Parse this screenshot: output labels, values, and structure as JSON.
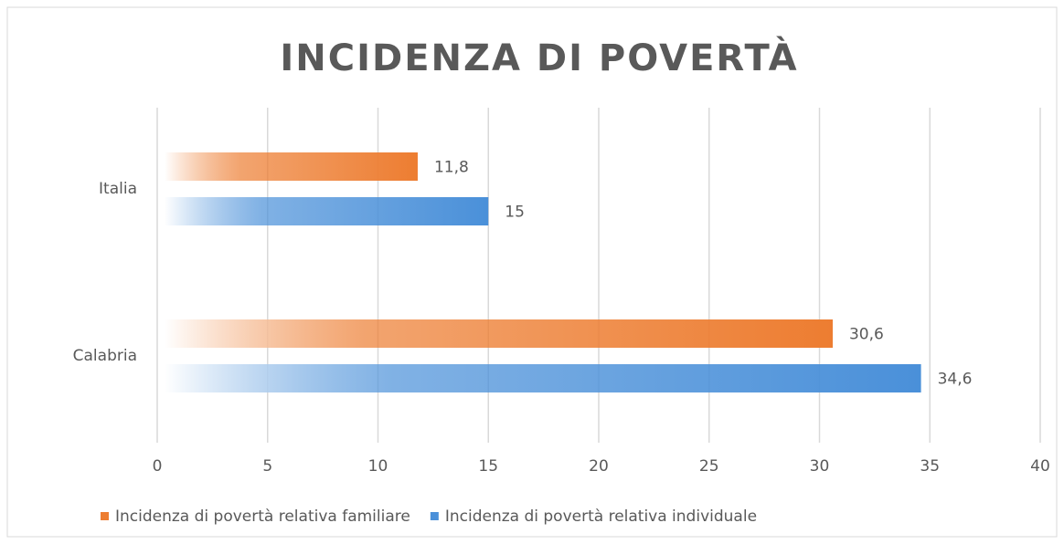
{
  "chart_data": {
    "type": "hbar",
    "title": "INCIDENZA DI POVERTÀ",
    "categories": [
      "Italia",
      "Calabria"
    ],
    "series": [
      {
        "name": "Incidenza di povertà relativa familiare",
        "color": "#ed7d31",
        "values": [
          11.8,
          30.6
        ],
        "value_labels": [
          "11,8",
          "30,6"
        ]
      },
      {
        "name": "Incidenza di povertà relativa individuale",
        "color": "#4a90d9",
        "values": [
          15,
          34.6
        ],
        "value_labels": [
          "15",
          "34,6"
        ]
      }
    ],
    "xlim": [
      0,
      40
    ],
    "xticks": [
      0,
      5,
      10,
      15,
      20,
      25,
      30,
      35,
      40
    ],
    "grid": true,
    "legend": "bottom"
  }
}
